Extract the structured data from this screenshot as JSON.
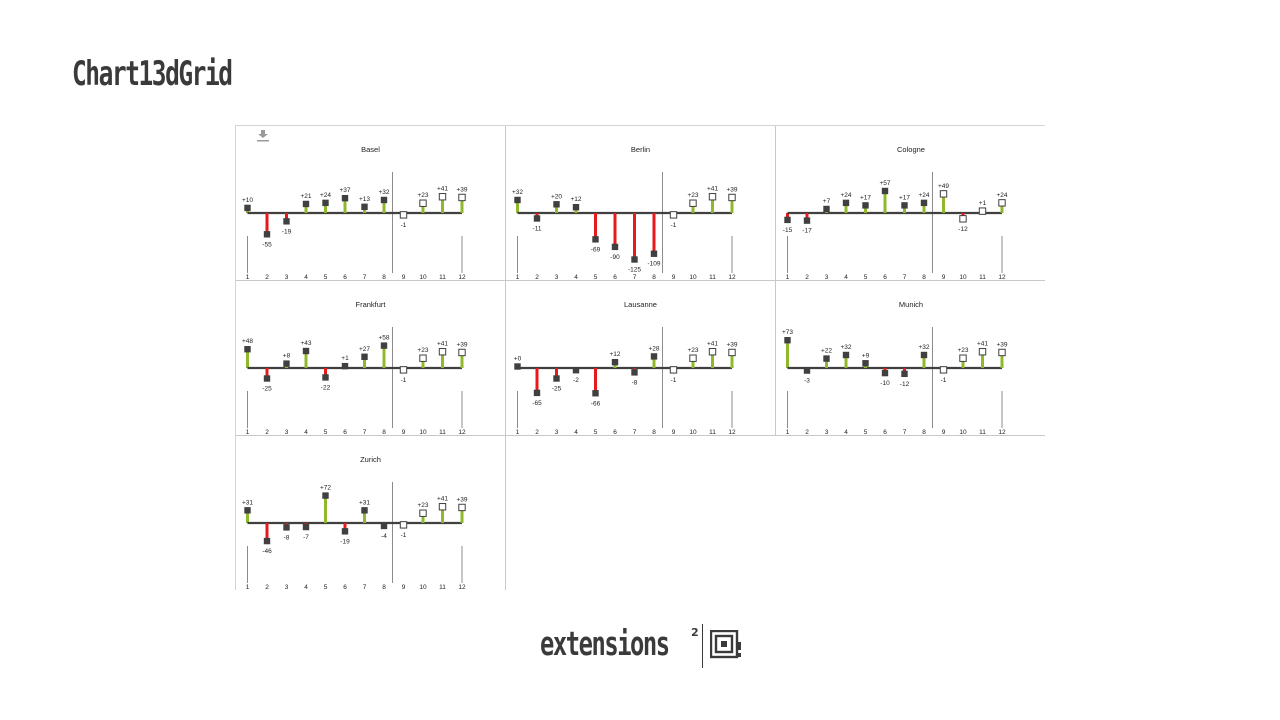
{
  "page": {
    "title": "Chart13dGrid"
  },
  "footer": {
    "brand_text": "extensions",
    "brand_sup": "2"
  },
  "chart_data": [
    {
      "type": "bar",
      "title": "Basel",
      "categories": [
        "1",
        "2",
        "3",
        "4",
        "5",
        "6",
        "7",
        "8",
        "9",
        "10",
        "11",
        "12"
      ],
      "values": [
        10,
        -55,
        -19,
        21,
        24,
        37,
        13,
        32,
        -1,
        23,
        41,
        39
      ],
      "labels": [
        "+10",
        "-55",
        "-19",
        "+21",
        "+24",
        "+37",
        "+13",
        "+32",
        "-1",
        "+23",
        "+41",
        "+39"
      ]
    },
    {
      "type": "bar",
      "title": "Berlin",
      "categories": [
        "1",
        "2",
        "3",
        "4",
        "5",
        "6",
        "7",
        "8",
        "9",
        "10",
        "11",
        "12"
      ],
      "values": [
        32,
        -11,
        20,
        12,
        -69,
        -90,
        -125,
        -109,
        -1,
        23,
        41,
        39
      ],
      "labels": [
        "+32",
        "-11",
        "+20",
        "+12",
        "-69",
        "-90",
        "-125",
        "-109",
        "-1",
        "+23",
        "+41",
        "+39"
      ]
    },
    {
      "type": "bar",
      "title": "Cologne",
      "categories": [
        "1",
        "2",
        "3",
        "4",
        "5",
        "6",
        "7",
        "8",
        "9",
        "10",
        "11",
        "12"
      ],
      "values": [
        -15,
        -17,
        7,
        24,
        17,
        57,
        17,
        24,
        49,
        -12,
        1,
        24
      ],
      "labels": [
        "-15",
        "-17",
        "+7",
        "+24",
        "+17",
        "+57",
        "+17",
        "+24",
        "+49",
        "-12",
        "+1",
        "+24"
      ]
    },
    {
      "type": "bar",
      "title": "Frankfurt",
      "categories": [
        "1",
        "2",
        "3",
        "4",
        "5",
        "6",
        "7",
        "8",
        "9",
        "10",
        "11",
        "12"
      ],
      "values": [
        48,
        -25,
        8,
        43,
        -22,
        1,
        27,
        58,
        -1,
        23,
        41,
        39
      ],
      "labels": [
        "+48",
        "-25",
        "+8",
        "+43",
        "-22",
        "+1",
        "+27",
        "+58",
        "-1",
        "+23",
        "+41",
        "+39"
      ]
    },
    {
      "type": "bar",
      "title": "Lausanne",
      "categories": [
        "1",
        "2",
        "3",
        "4",
        "5",
        "6",
        "7",
        "8",
        "9",
        "10",
        "11",
        "12"
      ],
      "values": [
        0,
        -65,
        -25,
        -2,
        -66,
        12,
        -8,
        28,
        -1,
        23,
        41,
        39
      ],
      "labels": [
        "+0",
        "-65",
        "-25",
        "-2",
        "-66",
        "+12",
        "-8",
        "+28",
        "-1",
        "+23",
        "+41",
        "+39"
      ]
    },
    {
      "type": "bar",
      "title": "Munich",
      "categories": [
        "1",
        "2",
        "3",
        "4",
        "5",
        "6",
        "7",
        "8",
        "9",
        "10",
        "11",
        "12"
      ],
      "values": [
        73,
        -3,
        22,
        32,
        9,
        -10,
        -12,
        32,
        -1,
        23,
        41,
        39
      ],
      "labels": [
        "+73",
        "-3",
        "+22",
        "+32",
        "+9",
        "-10",
        "-12",
        "+32",
        "-1",
        "+23",
        "+41",
        "+39"
      ]
    },
    {
      "type": "bar",
      "title": "Zurich",
      "categories": [
        "1",
        "2",
        "3",
        "4",
        "5",
        "6",
        "7",
        "8",
        "9",
        "10",
        "11",
        "12"
      ],
      "values": [
        31,
        -46,
        -8,
        -7,
        72,
        -19,
        31,
        -4,
        -1,
        23,
        41,
        39
      ],
      "labels": [
        "+31",
        "-46",
        "-8",
        "-7",
        "+72",
        "-19",
        "+31",
        "-4",
        "-1",
        "+23",
        "+41",
        "+39"
      ]
    }
  ],
  "colors": {
    "positive": "#8fb82a",
    "negative": "#e8191b",
    "marker": "#404040",
    "marker_open_fill": "#ffffff",
    "baseline": "#404040",
    "axis_line": "#8c8c8c"
  }
}
